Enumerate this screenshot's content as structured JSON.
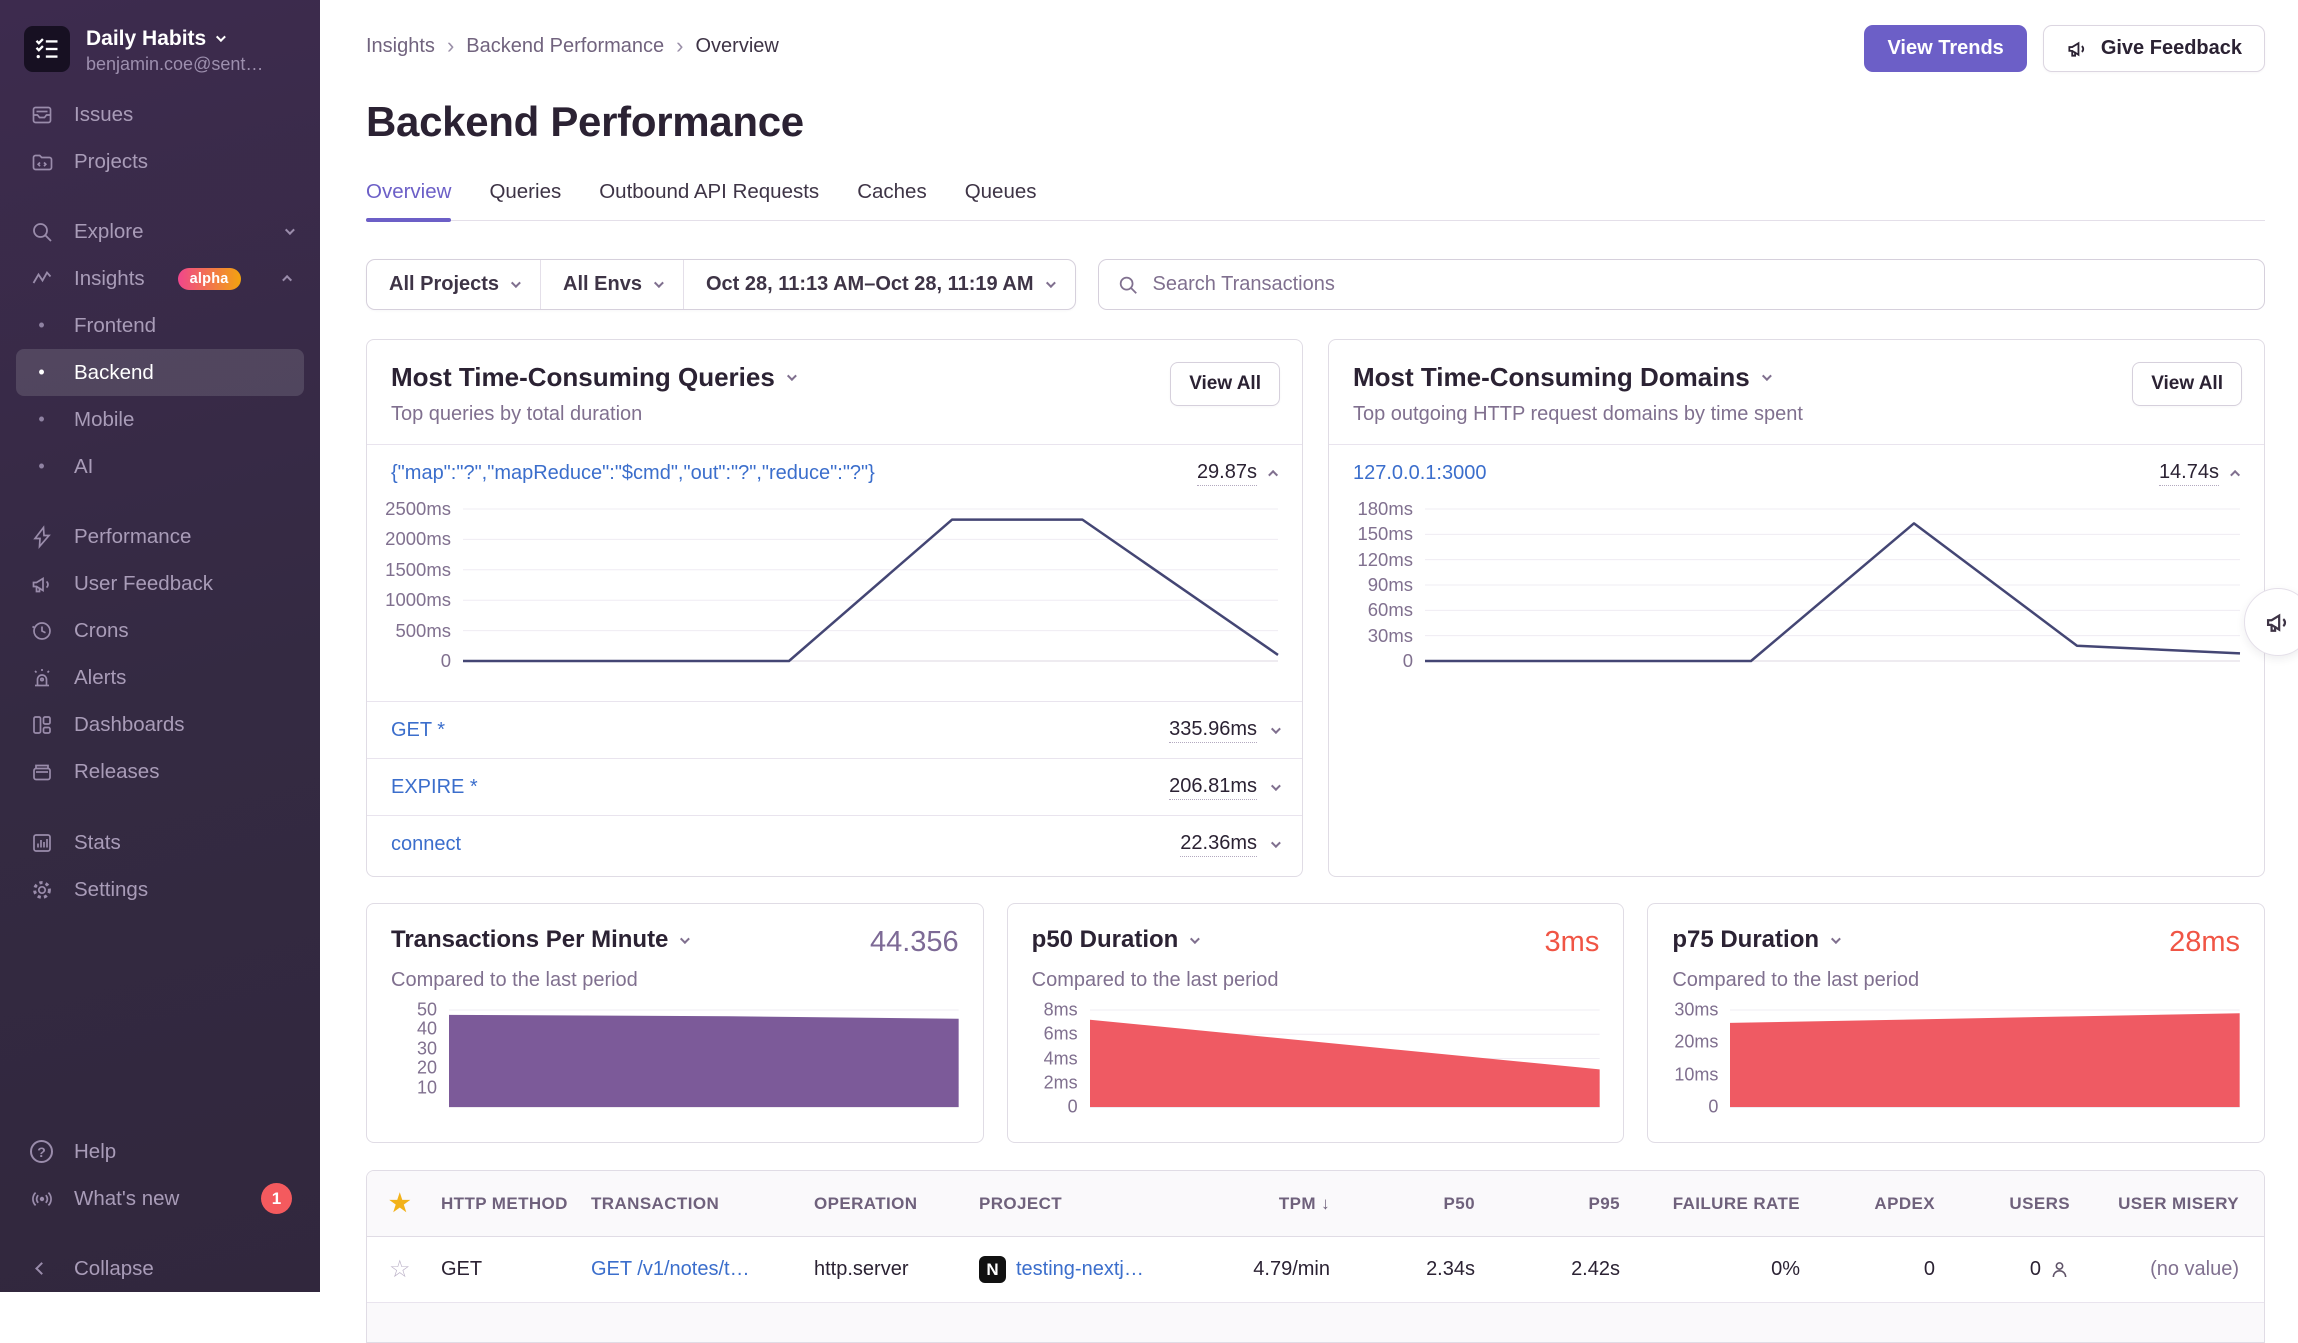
{
  "colors": {
    "accent": "#6c5fc7",
    "link": "#3b6ecc",
    "red": "#f05545",
    "chart_line": "#444674",
    "chart_purple_fill": "#7c5a99",
    "chart_red_fill": "#ef5a63",
    "sidebar_bg": "#342a42",
    "alpha_badge_from": "#f1468c",
    "alpha_badge_to": "#f2a30e"
  },
  "icons": {
    "star_filled": "★",
    "star_outline": "☆",
    "sort_desc": "↓",
    "help_glyph": "?",
    "project_letter": "N"
  },
  "sidebar": {
    "org_name": "Daily Habits",
    "org_email": "benjamin.coe@sent…",
    "issues": "Issues",
    "projects": "Projects",
    "explore": "Explore",
    "insights": "Insights",
    "insights_badge": "alpha",
    "frontend": "Frontend",
    "backend": "Backend",
    "mobile": "Mobile",
    "ai": "AI",
    "performance": "Performance",
    "user_feedback": "User Feedback",
    "crons": "Crons",
    "alerts": "Alerts",
    "dashboards": "Dashboards",
    "releases": "Releases",
    "stats": "Stats",
    "settings": "Settings",
    "help": "Help",
    "whats_new": "What's new",
    "whats_new_count": "1",
    "collapse": "Collapse"
  },
  "header": {
    "breadcrumbs": [
      "Insights",
      "Backend Performance",
      "Overview"
    ],
    "title": "Backend Performance",
    "view_trends": "View Trends",
    "give_feedback": "Give Feedback"
  },
  "tabs": {
    "overview": "Overview",
    "queries": "Queries",
    "outbound": "Outbound API Requests",
    "caches": "Caches",
    "queues": "Queues"
  },
  "filters": {
    "projects": "All Projects",
    "envs": "All Envs",
    "date_range": "Oct 28, 11:13 AM–Oct 28, 11:19 AM",
    "search_placeholder": "Search Transactions"
  },
  "queries_panel": {
    "title": "Most Time-Consuming Queries",
    "subtitle": "Top queries by total duration",
    "view_all": "View All",
    "expanded_row": {
      "label": "{\"map\":\"?\",\"mapReduce\":\"$cmd\",\"out\":\"?\",\"reduce\":\"?\"}",
      "value": "29.87s"
    },
    "rows": [
      {
        "label": "GET *",
        "value": "335.96ms"
      },
      {
        "label": "EXPIRE *",
        "value": "206.81ms"
      },
      {
        "label": "connect",
        "value": "22.36ms"
      }
    ],
    "chart": {
      "type": "line",
      "color": "#444674",
      "ylim": [
        0,
        2500
      ],
      "ticks": [
        {
          "label": "2500ms",
          "v": 2500
        },
        {
          "label": "2000ms",
          "v": 2000
        },
        {
          "label": "1500ms",
          "v": 1500
        },
        {
          "label": "1000ms",
          "v": 1000
        },
        {
          "label": "500ms",
          "v": 500
        },
        {
          "label": "0",
          "v": 0
        }
      ],
      "x": [
        0,
        0.4,
        0.6,
        0.76,
        1
      ],
      "values": [
        0,
        0,
        2325,
        2325,
        100
      ]
    }
  },
  "domains_panel": {
    "title": "Most Time-Consuming Domains",
    "subtitle": "Top outgoing HTTP request domains by time spent",
    "view_all": "View All",
    "expanded_row": {
      "label": "127.0.0.1:3000",
      "value": "14.74s"
    },
    "chart": {
      "type": "line",
      "color": "#444674",
      "ylim": [
        0,
        180
      ],
      "ticks": [
        {
          "label": "180ms",
          "v": 180
        },
        {
          "label": "150ms",
          "v": 150
        },
        {
          "label": "120ms",
          "v": 120
        },
        {
          "label": "90ms",
          "v": 90
        },
        {
          "label": "60ms",
          "v": 60
        },
        {
          "label": "30ms",
          "v": 30
        },
        {
          "label": "0",
          "v": 0
        }
      ],
      "x": [
        0,
        0.4,
        0.6,
        0.8,
        1
      ],
      "values": [
        0,
        0,
        163,
        18,
        9
      ]
    }
  },
  "stat_cards": {
    "tpm": {
      "title": "Transactions Per Minute",
      "value": "44.356",
      "subtitle": "Compared to the last period",
      "chart": {
        "type": "area",
        "color": "#7c5a99",
        "ylim": [
          0,
          50
        ],
        "ticks": [
          {
            "label": "50",
            "v": 50
          },
          {
            "label": "40",
            "v": 40
          },
          {
            "label": "30",
            "v": 30
          },
          {
            "label": "20",
            "v": 20
          },
          {
            "label": "10",
            "v": 10
          }
        ],
        "x": [
          0,
          0.55,
          1
        ],
        "values": [
          47.5,
          46.8,
          45.5
        ]
      }
    },
    "p50": {
      "title": "p50 Duration",
      "value": "3ms",
      "subtitle": "Compared to the last period",
      "chart": {
        "type": "area",
        "color": "#ef5a63",
        "ylim": [
          0,
          8
        ],
        "ticks": [
          {
            "label": "8ms",
            "v": 8
          },
          {
            "label": "6ms",
            "v": 6
          },
          {
            "label": "4ms",
            "v": 4
          },
          {
            "label": "2ms",
            "v": 2
          },
          {
            "label": "0",
            "v": 0
          }
        ],
        "x": [
          0,
          1
        ],
        "values": [
          7.2,
          3.1
        ]
      }
    },
    "p75": {
      "title": "p75 Duration",
      "value": "28ms",
      "subtitle": "Compared to the last period",
      "chart": {
        "type": "area",
        "color": "#ef5a63",
        "ylim": [
          0,
          30
        ],
        "ticks": [
          {
            "label": "30ms",
            "v": 30
          },
          {
            "label": "20ms",
            "v": 20
          },
          {
            "label": "10ms",
            "v": 10
          },
          {
            "label": "0",
            "v": 0
          }
        ],
        "x": [
          0,
          1
        ],
        "values": [
          26,
          29
        ]
      }
    }
  },
  "table": {
    "columns": [
      "HTTP METHOD",
      "TRANSACTION",
      "OPERATION",
      "PROJECT",
      "TPM",
      "P50",
      "P95",
      "FAILURE RATE",
      "APDEX",
      "USERS",
      "USER MISERY"
    ],
    "sort_column": "TPM",
    "rows": [
      {
        "http_method": "GET",
        "transaction": "GET /v1/notes/t…",
        "operation": "http.server",
        "project": "testing-nextj…",
        "tpm": "4.79/min",
        "p50": "2.34s",
        "p95": "2.42s",
        "failure_rate": "0%",
        "apdex": "0",
        "users": "0",
        "user_misery": "(no value)"
      }
    ]
  }
}
